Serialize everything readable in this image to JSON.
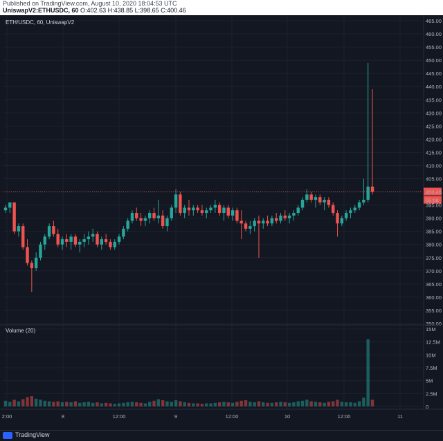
{
  "header": {
    "published": "Published on TradingView.com, August 10, 2020 18:04:53 UTC",
    "symbol": "UniswapV2:ETHUSDC, 60",
    "ohlc": "O:402.63 H:438.85 L:398.65 C:400.46"
  },
  "price_pane": {
    "label": "ETH/USDC, 60, UniswapV2",
    "last_price_label": "400.46",
    "countdown_label": "55:08"
  },
  "volume_pane": {
    "label": "Volume (20)"
  },
  "footer": {
    "brand": "TradingView"
  },
  "colors": {
    "background": "#131722",
    "up": "#26a69a",
    "down": "#ef5350",
    "grid": "#1e222d",
    "price_line": "#ef5350"
  },
  "chart_data": {
    "type": "candlestick",
    "price_axis": {
      "min": 350,
      "max": 465,
      "ticks": [
        "465.00",
        "460.00",
        "455.00",
        "450.00",
        "445.00",
        "440.00",
        "435.00",
        "430.00",
        "425.00",
        "420.00",
        "415.00",
        "410.00",
        "405.00",
        "400.00",
        "395.00",
        "390.00",
        "385.00",
        "380.00",
        "375.00",
        "370.00",
        "365.00",
        "360.00",
        "355.00",
        "350.00"
      ]
    },
    "volume_axis": {
      "max": 15000000,
      "ticks": [
        "15M",
        "12.5M",
        "10M",
        "7.5M",
        "5M",
        "2.5M",
        "0"
      ]
    },
    "time_labels": [
      "2:00",
      "8",
      "12:00",
      "9",
      "12:00",
      "10",
      "12:00",
      "11"
    ],
    "candles": [
      [
        393,
        395,
        392,
        394,
        1.1
      ],
      [
        394,
        396,
        392,
        396,
        0.9
      ],
      [
        396,
        396,
        384,
        385,
        1.3
      ],
      [
        385,
        388,
        383,
        387,
        1.0
      ],
      [
        387,
        388,
        378,
        379,
        1.4
      ],
      [
        379,
        382,
        372,
        373,
        1.8
      ],
      [
        373,
        374,
        362,
        371,
        2.0
      ],
      [
        371,
        377,
        370,
        375,
        1.5
      ],
      [
        375,
        381,
        374,
        380,
        1.3
      ],
      [
        380,
        384,
        378,
        383,
        1.1
      ],
      [
        383,
        388,
        382,
        387,
        1.0
      ],
      [
        387,
        389,
        383,
        384,
        0.9
      ],
      [
        384,
        386,
        379,
        380,
        1.0
      ],
      [
        380,
        383,
        378,
        382,
        0.8
      ],
      [
        382,
        384,
        379,
        381,
        0.9
      ],
      [
        381,
        384,
        378,
        383,
        0.8
      ],
      [
        383,
        384,
        379,
        380,
        1.0
      ],
      [
        380,
        382,
        377,
        381,
        0.7
      ],
      [
        381,
        384,
        379,
        382,
        0.8
      ],
      [
        382,
        385,
        380,
        383,
        0.9
      ],
      [
        383,
        386,
        381,
        384,
        0.7
      ],
      [
        384,
        385,
        379,
        380,
        0.8
      ],
      [
        380,
        383,
        378,
        382,
        0.6
      ],
      [
        382,
        384,
        380,
        381,
        0.7
      ],
      [
        381,
        382,
        378,
        379,
        0.6
      ],
      [
        379,
        382,
        378,
        381,
        0.5
      ],
      [
        381,
        384,
        380,
        383,
        0.6
      ],
      [
        383,
        387,
        382,
        386,
        0.7
      ],
      [
        386,
        390,
        385,
        389,
        0.8
      ],
      [
        389,
        393,
        388,
        392,
        0.9
      ],
      [
        392,
        394,
        389,
        390,
        0.8
      ],
      [
        390,
        392,
        387,
        389,
        0.7
      ],
      [
        389,
        391,
        387,
        390,
        0.6
      ],
      [
        390,
        393,
        388,
        392,
        0.9
      ],
      [
        392,
        394,
        389,
        390,
        1.1
      ],
      [
        390,
        397,
        388,
        391,
        1.4
      ],
      [
        391,
        393,
        386,
        387,
        1.2
      ],
      [
        387,
        391,
        385,
        390,
        1.0
      ],
      [
        390,
        395,
        389,
        394,
        0.9
      ],
      [
        394,
        401,
        392,
        399,
        1.2
      ],
      [
        399,
        400,
        391,
        392,
        1.0
      ],
      [
        392,
        395,
        390,
        394,
        0.8
      ],
      [
        394,
        397,
        391,
        393,
        0.7
      ],
      [
        393,
        395,
        391,
        394,
        0.6
      ],
      [
        394,
        395,
        392,
        393,
        0.6
      ],
      [
        393,
        395,
        391,
        392,
        0.5
      ],
      [
        392,
        394,
        390,
        393,
        0.6
      ],
      [
        393,
        395,
        392,
        394,
        0.6
      ],
      [
        394,
        397,
        392,
        395,
        0.7
      ],
      [
        395,
        396,
        391,
        392,
        0.8
      ],
      [
        392,
        395,
        389,
        394,
        0.9
      ],
      [
        394,
        395,
        390,
        391,
        0.8
      ],
      [
        391,
        394,
        389,
        393,
        0.7
      ],
      [
        393,
        394,
        388,
        389,
        0.9
      ],
      [
        389,
        393,
        382,
        388,
        1.1
      ],
      [
        388,
        389,
        385,
        386,
        1.2
      ],
      [
        386,
        389,
        384,
        387,
        0.9
      ],
      [
        387,
        390,
        385,
        389,
        0.8
      ],
      [
        389,
        391,
        375,
        388,
        1.0
      ],
      [
        388,
        390,
        386,
        389,
        0.8
      ],
      [
        389,
        391,
        387,
        388,
        0.7
      ],
      [
        388,
        391,
        387,
        390,
        0.7
      ],
      [
        390,
        392,
        388,
        389,
        0.8
      ],
      [
        389,
        392,
        388,
        391,
        0.9
      ],
      [
        391,
        393,
        389,
        390,
        0.8
      ],
      [
        390,
        392,
        388,
        391,
        0.7
      ],
      [
        391,
        393,
        389,
        392,
        0.8
      ],
      [
        392,
        395,
        391,
        394,
        1.0
      ],
      [
        394,
        398,
        393,
        397,
        1.1
      ],
      [
        397,
        401,
        396,
        399,
        1.3
      ],
      [
        399,
        400,
        396,
        397,
        1.0
      ],
      [
        397,
        399,
        394,
        398,
        0.9
      ],
      [
        398,
        399,
        395,
        396,
        0.8
      ],
      [
        396,
        398,
        393,
        397,
        0.7
      ],
      [
        397,
        398,
        394,
        395,
        0.9
      ],
      [
        395,
        396,
        391,
        392,
        1.0
      ],
      [
        392,
        393,
        383,
        388,
        1.3
      ],
      [
        388,
        391,
        387,
        390,
        0.9
      ],
      [
        390,
        393,
        389,
        392,
        0.8
      ],
      [
        392,
        394,
        390,
        393,
        0.8
      ],
      [
        393,
        395,
        392,
        394,
        0.7
      ],
      [
        394,
        397,
        393,
        396,
        1.0
      ],
      [
        396,
        405,
        395,
        397,
        1.7
      ],
      [
        397,
        449,
        396,
        402,
        13.0
      ],
      [
        402,
        439,
        399,
        400,
        1.3
      ]
    ]
  }
}
